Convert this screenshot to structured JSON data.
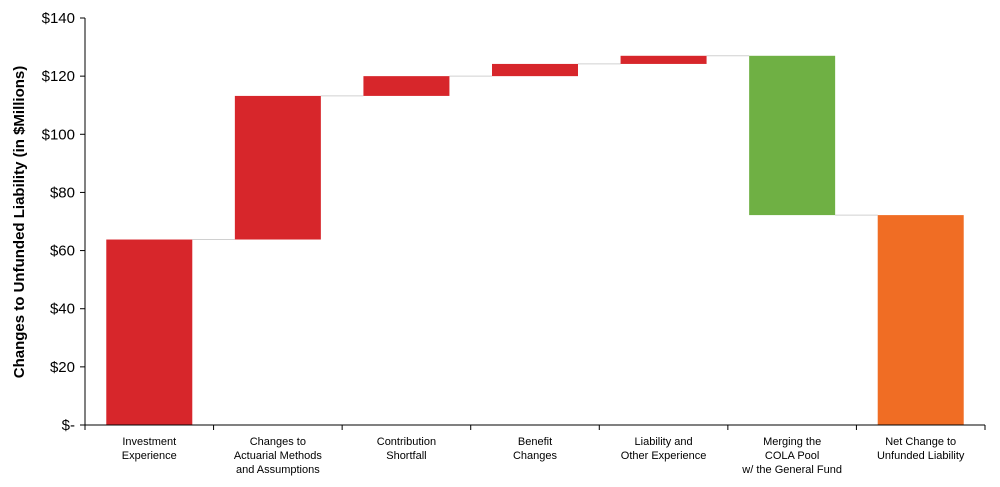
{
  "chart_data": {
    "type": "waterfall",
    "ylabel": "Changes to Unfunded Liability (in $Millions)",
    "ylim": [
      0,
      140
    ],
    "yticks": [
      0,
      20,
      40,
      60,
      80,
      100,
      120,
      140
    ],
    "ytick_labels": [
      "$-",
      "$20",
      "$40",
      "$60",
      "$80",
      "$100",
      "$120",
      "$140"
    ],
    "categories": [
      [
        "Investment",
        "Experience"
      ],
      [
        "Changes to",
        "Actuarial Methods",
        "and Assumptions"
      ],
      [
        "Contribution",
        "Shortfall"
      ],
      [
        "Benefit",
        "Changes"
      ],
      [
        "Liability and",
        "Other Experience"
      ],
      [
        "Merging the",
        "COLA Pool",
        "w/ the General Fund"
      ],
      [
        "Net Change to",
        "Unfunded Liability"
      ]
    ],
    "bars": [
      {
        "start": 0,
        "end": 63.8,
        "color": "#d7262b"
      },
      {
        "start": 63.8,
        "end": 113.2,
        "color": "#d7262b"
      },
      {
        "start": 113.2,
        "end": 120.0,
        "color": "#d7262b"
      },
      {
        "start": 120.0,
        "end": 124.2,
        "color": "#d7262b"
      },
      {
        "start": 124.2,
        "end": 127.0,
        "color": "#d7262b"
      },
      {
        "start": 127.0,
        "end": 72.2,
        "color": "#6fb044"
      },
      {
        "start": 0,
        "end": 72.2,
        "color": "#f06d24"
      }
    ],
    "grid": false,
    "legend": "none"
  }
}
